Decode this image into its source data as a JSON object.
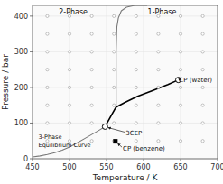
{
  "chart_data": {
    "type": "line",
    "xlabel": "Temperature / K",
    "ylabel": "Pressure / bar",
    "xlim": [
      450,
      700
    ],
    "ylim": [
      0,
      430
    ],
    "xticks": [
      450,
      500,
      550,
      600,
      650,
      700
    ],
    "yticks": [
      0,
      100,
      200,
      300,
      400
    ],
    "series": [
      {
        "type": "scatter",
        "marker": "open-circle",
        "color": "#999999",
        "x": [
          470,
          500,
          530,
          560,
          590,
          620,
          650,
          680,
          470,
          500,
          530,
          560,
          590,
          620,
          650,
          680,
          470,
          500,
          530,
          560,
          590,
          620,
          650,
          680,
          470,
          500,
          530,
          560,
          590,
          620,
          650,
          680,
          470,
          500,
          530,
          560,
          590,
          620,
          650,
          680,
          470,
          500,
          530,
          560,
          590,
          620,
          650,
          680,
          470,
          500,
          530,
          560,
          590,
          620,
          650,
          680,
          470,
          500,
          530,
          560,
          590,
          620,
          650,
          680
        ],
        "values": [
          400,
          400,
          400,
          400,
          400,
          400,
          400,
          400,
          350,
          350,
          350,
          350,
          350,
          350,
          350,
          350,
          300,
          300,
          300,
          300,
          300,
          300,
          300,
          300,
          250,
          250,
          250,
          250,
          250,
          250,
          250,
          250,
          200,
          200,
          200,
          200,
          200,
          200,
          200,
          200,
          150,
          150,
          150,
          150,
          150,
          150,
          150,
          150,
          100,
          100,
          100,
          100,
          100,
          100,
          100,
          100,
          50,
          50,
          50,
          50,
          50,
          50,
          50,
          50
        ]
      },
      {
        "type": "line",
        "color": "#777777",
        "x": [
          450,
          460,
          470,
          480,
          490,
          500,
          510,
          520,
          530,
          540,
          548
        ],
        "values": [
          5,
          8,
          12,
          17,
          24,
          33,
          44,
          56,
          68,
          80,
          90
        ]
      },
      {
        "type": "line",
        "color": "#777777",
        "x": [
          563,
          563,
          563,
          563,
          563,
          563.5,
          564,
          566,
          570,
          577,
          588,
          605
        ],
        "values": [
          145,
          180,
          220,
          260,
          300,
          340,
          370,
          395,
          415,
          425,
          430,
          430
        ]
      },
      {
        "type": "line",
        "color": "black",
        "x": [
          548,
          556,
          561,
          563
        ],
        "values": [
          90,
          120,
          138,
          145
        ]
      },
      {
        "type": "line",
        "color": "black",
        "x": [
          563,
          575,
          592,
          612,
          633,
          647
        ],
        "values": [
          145,
          158,
          175,
          191,
          208,
          221
        ]
      },
      {
        "type": "scatter",
        "marker": "open-circle",
        "color": "black",
        "x": [
          548
        ],
        "values": [
          90
        ]
      },
      {
        "type": "scatter",
        "marker": "square",
        "color": "black",
        "x": [
          562
        ],
        "values": [
          49
        ]
      },
      {
        "type": "scatter",
        "marker": "open-circle",
        "color": "black",
        "x": [
          647
        ],
        "values": [
          221
        ]
      }
    ],
    "annotations": [
      {
        "text": "3CEP",
        "x": 548,
        "y": 90,
        "text_x": 576,
        "text_y": 72
      },
      {
        "text": "CP (benzene)",
        "x": 562,
        "y": 49,
        "text_x": 572,
        "text_y": 30
      },
      {
        "text": "CP (water)",
        "x": 647,
        "y": 221,
        "text_x": 648,
        "text_y": 221
      },
      {
        "text": "3-Phase\nEquilibrium Curve",
        "x": 458,
        "y": 50
      },
      {
        "text": "2-Phase",
        "x": 505,
        "y": 412
      },
      {
        "text": "1-Phase",
        "x": 625,
        "y": 412
      }
    ]
  }
}
